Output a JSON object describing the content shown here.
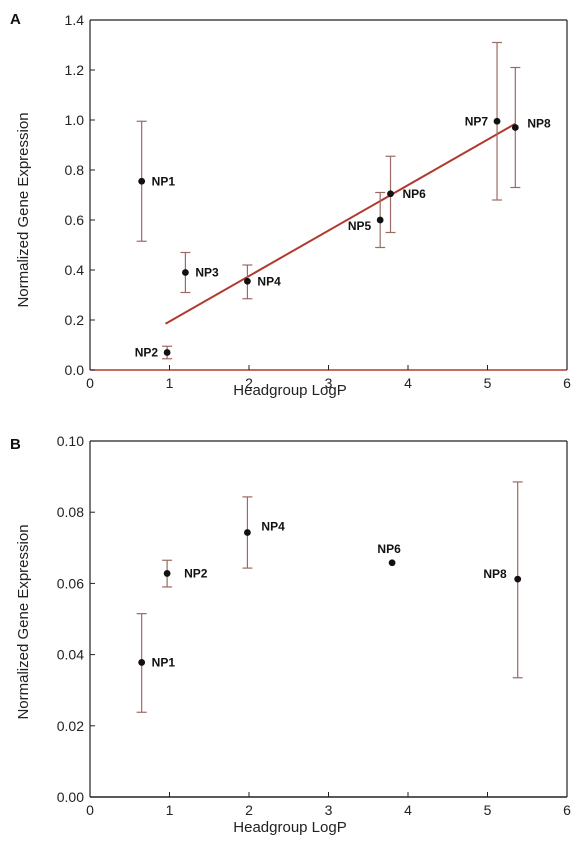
{
  "chart_data": [
    {
      "type": "scatter",
      "panel_label": "A",
      "xlabel": "Headgroup LogP",
      "ylabel": "Normalized Gene Expression",
      "xlim": [
        0,
        6
      ],
      "ylim": [
        0,
        1.4
      ],
      "xticks": [
        "0",
        "1",
        "2",
        "3",
        "4",
        "5",
        "6"
      ],
      "yticks": [
        "0.0",
        "0.2",
        "0.4",
        "0.6",
        "0.8",
        "1.0",
        "1.2",
        "1.4"
      ],
      "grid": false,
      "points": [
        {
          "label": "NP1",
          "x": 0.65,
          "y": 0.755,
          "err_low": 0.515,
          "err_high": 0.995
        },
        {
          "label": "NP2",
          "x": 0.97,
          "y": 0.07,
          "err_low": 0.045,
          "err_high": 0.095
        },
        {
          "label": "NP3",
          "x": 1.2,
          "y": 0.39,
          "err_low": 0.31,
          "err_high": 0.47
        },
        {
          "label": "NP4",
          "x": 1.98,
          "y": 0.355,
          "err_low": 0.285,
          "err_high": 0.42
        },
        {
          "label": "NP5",
          "x": 3.65,
          "y": 0.6,
          "err_low": 0.49,
          "err_high": 0.71
        },
        {
          "label": "NP6",
          "x": 3.78,
          "y": 0.705,
          "err_low": 0.55,
          "err_high": 0.855
        },
        {
          "label": "NP7",
          "x": 5.12,
          "y": 0.995,
          "err_low": 0.68,
          "err_high": 1.31
        },
        {
          "label": "NP8",
          "x": 5.35,
          "y": 0.97,
          "err_low": 0.73,
          "err_high": 1.21
        }
      ],
      "fit_line": {
        "x": [
          0.95,
          5.35
        ],
        "y": [
          0.185,
          0.985
        ],
        "color": "#b03a2e"
      }
    },
    {
      "type": "scatter",
      "panel_label": "B",
      "xlabel": "Headgroup LogP",
      "ylabel": "Normalized Gene Expression",
      "xlim": [
        0,
        6
      ],
      "ylim": [
        0,
        0.1
      ],
      "xticks": [
        "0",
        "1",
        "2",
        "3",
        "4",
        "5",
        "6"
      ],
      "yticks": [
        "0.00",
        "0.02",
        "0.04",
        "0.06",
        "0.08",
        "0.10"
      ],
      "grid": false,
      "points": [
        {
          "label": "NP1",
          "x": 0.65,
          "y": 0.0378,
          "err_low": 0.0238,
          "err_high": 0.0515
        },
        {
          "label": "NP2",
          "x": 0.97,
          "y": 0.0628,
          "err_low": 0.059,
          "err_high": 0.0665
        },
        {
          "label": "NP4",
          "x": 1.98,
          "y": 0.0743,
          "err_low": 0.0643,
          "err_high": 0.0843
        },
        {
          "label": "NP6",
          "x": 3.8,
          "y": 0.0658,
          "err_low": null,
          "err_high": null
        },
        {
          "label": "NP8",
          "x": 5.38,
          "y": 0.0612,
          "err_low": 0.0335,
          "err_high": 0.0885
        }
      ]
    }
  ],
  "colors": {
    "axis": "#222222",
    "point": "#111111",
    "error_bar": "#9a6a64",
    "zero_line": "#b03a2e",
    "fit_line": "#b03a2e"
  }
}
